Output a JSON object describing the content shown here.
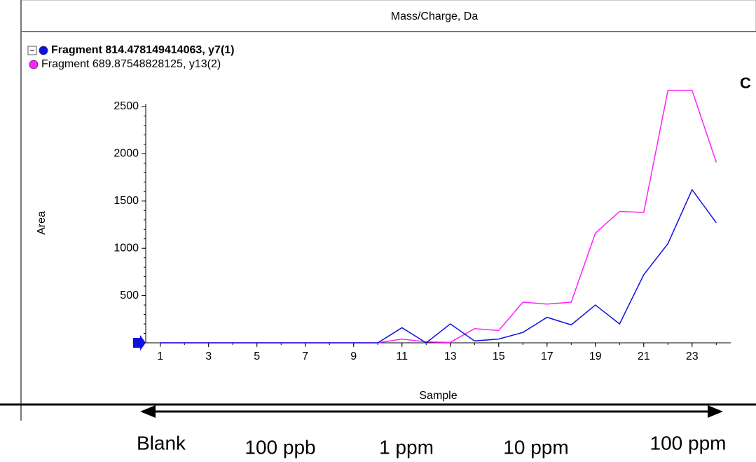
{
  "chart_data": {
    "type": "line",
    "header": "Mass/Charge, Da",
    "panel_label": "C",
    "x_label": "Sample",
    "y_label": "Area",
    "x": [
      1,
      2,
      3,
      4,
      5,
      6,
      7,
      8,
      9,
      10,
      11,
      12,
      13,
      14,
      15,
      16,
      17,
      18,
      19,
      20,
      21,
      22,
      23,
      24
    ],
    "series": [
      {
        "name": "Fragment 814.478149414063, y7(1)",
        "color": "#1010e0",
        "values": [
          0,
          0,
          0,
          0,
          0,
          0,
          0,
          0,
          0,
          0,
          160,
          0,
          200,
          20,
          40,
          110,
          270,
          190,
          400,
          200,
          720,
          1050,
          1620,
          1270
        ]
      },
      {
        "name": "Fragment 689.87548828125, y13(2)",
        "color": "#ff20ff",
        "values": [
          0,
          0,
          0,
          0,
          0,
          0,
          0,
          0,
          0,
          0,
          40,
          10,
          5,
          150,
          130,
          430,
          410,
          430,
          1160,
          1390,
          1380,
          2670,
          2670,
          1910
        ]
      }
    ],
    "xlim": [
      0.4,
      24.6
    ],
    "xticks": [
      1,
      3,
      5,
      7,
      9,
      11,
      13,
      15,
      17,
      19,
      21,
      23
    ],
    "ylim": [
      0,
      2700
    ],
    "yticks": [
      0,
      500,
      1000,
      1500,
      2000,
      2500
    ],
    "annotations": [
      "Blank",
      "100 ppb",
      "1 ppm",
      "10 ppm",
      "100 ppm"
    ]
  }
}
